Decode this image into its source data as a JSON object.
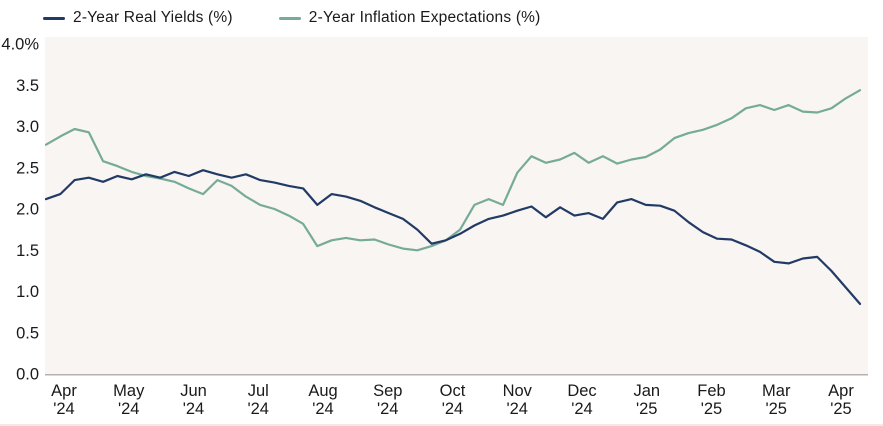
{
  "chart_data": {
    "type": "line",
    "title": "",
    "xlabel": "",
    "ylabel": "",
    "ylim": [
      0.0,
      4.0
    ],
    "grid": false,
    "legend_position": "top",
    "y_ticks": [
      {
        "label": "4.0%",
        "value": 4.0
      },
      {
        "label": "3.5",
        "value": 3.5
      },
      {
        "label": "3.0",
        "value": 3.0
      },
      {
        "label": "2.5",
        "value": 2.5
      },
      {
        "label": "2.0",
        "value": 2.0
      },
      {
        "label": "1.5",
        "value": 1.5
      },
      {
        "label": "1.0",
        "value": 1.0
      },
      {
        "label": "0.5",
        "value": 0.5
      },
      {
        "label": "0.0",
        "value": 0.0
      }
    ],
    "x_ticks": [
      {
        "month": "Apr",
        "year": "'24"
      },
      {
        "month": "May",
        "year": "'24"
      },
      {
        "month": "Jun",
        "year": "'24"
      },
      {
        "month": "Jul",
        "year": "'24"
      },
      {
        "month": "Aug",
        "year": "'24"
      },
      {
        "month": "Sep",
        "year": "'24"
      },
      {
        "month": "Oct",
        "year": "'24"
      },
      {
        "month": "Nov",
        "year": "'24"
      },
      {
        "month": "Dec",
        "year": "'24"
      },
      {
        "month": "Jan",
        "year": "'25"
      },
      {
        "month": "Feb",
        "year": "'25"
      },
      {
        "month": "Mar",
        "year": "'25"
      },
      {
        "month": "Apr",
        "year": "'25"
      }
    ],
    "series": [
      {
        "id": "real-yields",
        "name": "2-Year Real Yields (%)",
        "color": "#213a66",
        "values": [
          2.12,
          2.18,
          2.35,
          2.38,
          2.33,
          2.4,
          2.36,
          2.42,
          2.38,
          2.45,
          2.4,
          2.47,
          2.42,
          2.38,
          2.42,
          2.35,
          2.32,
          2.28,
          2.25,
          2.05,
          2.18,
          2.15,
          2.1,
          2.02,
          1.95,
          1.88,
          1.75,
          1.58,
          1.62,
          1.7,
          1.8,
          1.88,
          1.92,
          1.98,
          2.03,
          1.9,
          2.02,
          1.92,
          1.95,
          1.88,
          2.08,
          2.12,
          2.05,
          2.04,
          1.98,
          1.84,
          1.72,
          1.64,
          1.63,
          1.56,
          1.48,
          1.36,
          1.34,
          1.4,
          1.42,
          1.25,
          1.05,
          0.85
        ]
      },
      {
        "id": "inflation-expectations",
        "name": "2-Year Inflation Expectations (%)",
        "color": "#76ab97",
        "values": [
          2.78,
          2.88,
          2.97,
          2.93,
          2.58,
          2.52,
          2.45,
          2.4,
          2.37,
          2.33,
          2.25,
          2.18,
          2.35,
          2.28,
          2.15,
          2.05,
          2.0,
          1.92,
          1.82,
          1.55,
          1.62,
          1.65,
          1.62,
          1.63,
          1.57,
          1.52,
          1.5,
          1.55,
          1.62,
          1.75,
          2.05,
          2.12,
          2.05,
          2.44,
          2.64,
          2.56,
          2.6,
          2.68,
          2.56,
          2.64,
          2.55,
          2.6,
          2.63,
          2.72,
          2.86,
          2.92,
          2.96,
          3.02,
          3.1,
          3.22,
          3.26,
          3.2,
          3.26,
          3.18,
          3.17,
          3.22,
          3.34,
          3.44
        ]
      }
    ]
  },
  "colors": {
    "plot_background": "#f9f5f2",
    "axis_line": "#b8b0ae",
    "text": "#1a1a1a",
    "page_background": "#ffffff",
    "bottom_rule": "#f3eae6"
  }
}
